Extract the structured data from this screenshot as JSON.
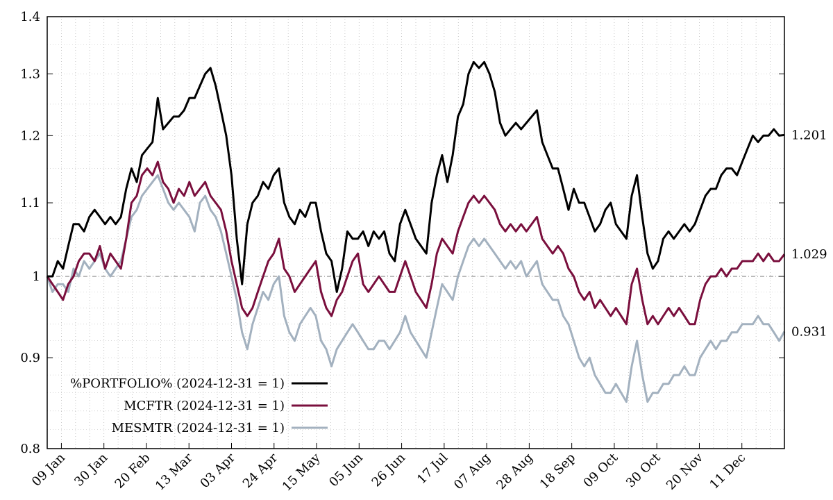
{
  "chart_data": {
    "type": "line",
    "title": "",
    "xlabel": "",
    "ylabel": "",
    "yscale": "log",
    "ylim": [
      0.8,
      1.4
    ],
    "baseline": 1,
    "grid": true,
    "legend_position": "bottom-left",
    "y_ticks": [
      {
        "value": 0.8,
        "label": "0.8"
      },
      {
        "value": 0.9,
        "label": "0.9"
      },
      {
        "value": 1.0,
        "label": "1"
      },
      {
        "value": 1.1,
        "label": "1.1"
      },
      {
        "value": 1.2,
        "label": "1.2"
      },
      {
        "value": 1.3,
        "label": "1.3"
      },
      {
        "value": 1.4,
        "label": "1.4"
      }
    ],
    "x_ticks": [
      "09 Jan",
      "30 Jan",
      "20 Feb",
      "13 Mar",
      "03 Apr",
      "24 Apr",
      "15 May",
      "05 Jun",
      "26 Jun",
      "17 Jul",
      "07 Aug",
      "28 Aug",
      "18 Sep",
      "09 Oct",
      "30 Oct",
      "20 Nov",
      "11 Dec"
    ],
    "series": [
      {
        "name": "%PORTFOLIO% (2024-12-31 = 1)",
        "color": "#000000",
        "end_label": "1.201",
        "values": [
          1.0,
          1.0,
          1.02,
          1.01,
          1.04,
          1.07,
          1.07,
          1.06,
          1.08,
          1.09,
          1.08,
          1.07,
          1.08,
          1.07,
          1.08,
          1.12,
          1.15,
          1.13,
          1.17,
          1.18,
          1.19,
          1.26,
          1.21,
          1.22,
          1.23,
          1.23,
          1.24,
          1.26,
          1.26,
          1.28,
          1.3,
          1.31,
          1.28,
          1.24,
          1.2,
          1.14,
          1.05,
          0.99,
          1.07,
          1.1,
          1.11,
          1.13,
          1.12,
          1.14,
          1.15,
          1.1,
          1.08,
          1.07,
          1.09,
          1.08,
          1.1,
          1.1,
          1.06,
          1.03,
          1.02,
          0.98,
          1.01,
          1.06,
          1.05,
          1.05,
          1.06,
          1.04,
          1.06,
          1.05,
          1.06,
          1.03,
          1.02,
          1.07,
          1.09,
          1.07,
          1.05,
          1.04,
          1.03,
          1.1,
          1.14,
          1.17,
          1.13,
          1.17,
          1.23,
          1.25,
          1.3,
          1.32,
          1.31,
          1.32,
          1.3,
          1.27,
          1.22,
          1.2,
          1.21,
          1.22,
          1.21,
          1.22,
          1.23,
          1.24,
          1.19,
          1.17,
          1.15,
          1.15,
          1.12,
          1.09,
          1.12,
          1.1,
          1.1,
          1.08,
          1.06,
          1.07,
          1.09,
          1.1,
          1.07,
          1.06,
          1.05,
          1.11,
          1.14,
          1.08,
          1.03,
          1.01,
          1.02,
          1.05,
          1.06,
          1.05,
          1.06,
          1.07,
          1.06,
          1.07,
          1.09,
          1.11,
          1.12,
          1.12,
          1.14,
          1.15,
          1.15,
          1.14,
          1.16,
          1.18,
          1.2,
          1.19,
          1.2,
          1.2,
          1.21,
          1.2,
          1.201
        ]
      },
      {
        "name": "MCFTR (2024-12-31 = 1)",
        "color": "#7a0f3d",
        "end_label": "1.029",
        "values": [
          1.0,
          0.99,
          0.98,
          0.97,
          0.99,
          1.0,
          1.02,
          1.03,
          1.03,
          1.02,
          1.04,
          1.01,
          1.03,
          1.02,
          1.01,
          1.05,
          1.1,
          1.11,
          1.14,
          1.15,
          1.14,
          1.16,
          1.13,
          1.12,
          1.1,
          1.12,
          1.11,
          1.13,
          1.11,
          1.12,
          1.13,
          1.11,
          1.1,
          1.09,
          1.06,
          1.02,
          0.99,
          0.96,
          0.95,
          0.96,
          0.98,
          1.0,
          1.02,
          1.03,
          1.05,
          1.01,
          1.0,
          0.98,
          0.99,
          1.0,
          1.01,
          1.02,
          0.98,
          0.96,
          0.95,
          0.97,
          0.98,
          1.0,
          1.02,
          1.03,
          0.99,
          0.98,
          0.99,
          1.0,
          0.99,
          0.98,
          0.98,
          1.0,
          1.02,
          1.0,
          0.98,
          0.97,
          0.96,
          0.99,
          1.03,
          1.05,
          1.04,
          1.03,
          1.06,
          1.08,
          1.1,
          1.11,
          1.1,
          1.11,
          1.1,
          1.09,
          1.07,
          1.06,
          1.07,
          1.06,
          1.07,
          1.06,
          1.07,
          1.08,
          1.05,
          1.04,
          1.03,
          1.04,
          1.03,
          1.01,
          1.0,
          0.98,
          0.97,
          0.98,
          0.96,
          0.97,
          0.96,
          0.95,
          0.96,
          0.95,
          0.94,
          0.99,
          1.01,
          0.97,
          0.94,
          0.95,
          0.94,
          0.95,
          0.96,
          0.95,
          0.96,
          0.95,
          0.94,
          0.94,
          0.97,
          0.99,
          1.0,
          1.0,
          1.01,
          1.0,
          1.01,
          1.01,
          1.02,
          1.02,
          1.02,
          1.03,
          1.02,
          1.03,
          1.02,
          1.02,
          1.029
        ]
      },
      {
        "name": "MESMTR (2024-12-31 = 1)",
        "color": "#a3b1bf",
        "end_label": "0.931",
        "values": [
          1.0,
          0.98,
          0.99,
          0.99,
          0.98,
          1.01,
          1.0,
          1.02,
          1.01,
          1.02,
          1.03,
          1.01,
          1.0,
          1.01,
          1.02,
          1.05,
          1.08,
          1.09,
          1.11,
          1.12,
          1.13,
          1.14,
          1.12,
          1.1,
          1.09,
          1.1,
          1.09,
          1.08,
          1.06,
          1.1,
          1.11,
          1.09,
          1.08,
          1.06,
          1.03,
          1.0,
          0.97,
          0.93,
          0.91,
          0.94,
          0.96,
          0.98,
          0.97,
          0.99,
          1.0,
          0.95,
          0.93,
          0.92,
          0.94,
          0.95,
          0.96,
          0.95,
          0.92,
          0.91,
          0.89,
          0.91,
          0.92,
          0.93,
          0.94,
          0.93,
          0.92,
          0.91,
          0.91,
          0.92,
          0.92,
          0.91,
          0.92,
          0.93,
          0.95,
          0.93,
          0.92,
          0.91,
          0.9,
          0.93,
          0.96,
          0.99,
          0.98,
          0.97,
          1.0,
          1.02,
          1.04,
          1.05,
          1.04,
          1.05,
          1.04,
          1.03,
          1.02,
          1.01,
          1.02,
          1.01,
          1.02,
          1.0,
          1.01,
          1.02,
          0.99,
          0.98,
          0.97,
          0.97,
          0.95,
          0.94,
          0.92,
          0.9,
          0.89,
          0.9,
          0.88,
          0.87,
          0.86,
          0.86,
          0.87,
          0.86,
          0.85,
          0.89,
          0.92,
          0.88,
          0.85,
          0.86,
          0.86,
          0.87,
          0.87,
          0.88,
          0.88,
          0.89,
          0.88,
          0.88,
          0.9,
          0.91,
          0.92,
          0.91,
          0.92,
          0.92,
          0.93,
          0.93,
          0.94,
          0.94,
          0.94,
          0.95,
          0.94,
          0.94,
          0.93,
          0.92,
          0.931
        ]
      }
    ]
  }
}
